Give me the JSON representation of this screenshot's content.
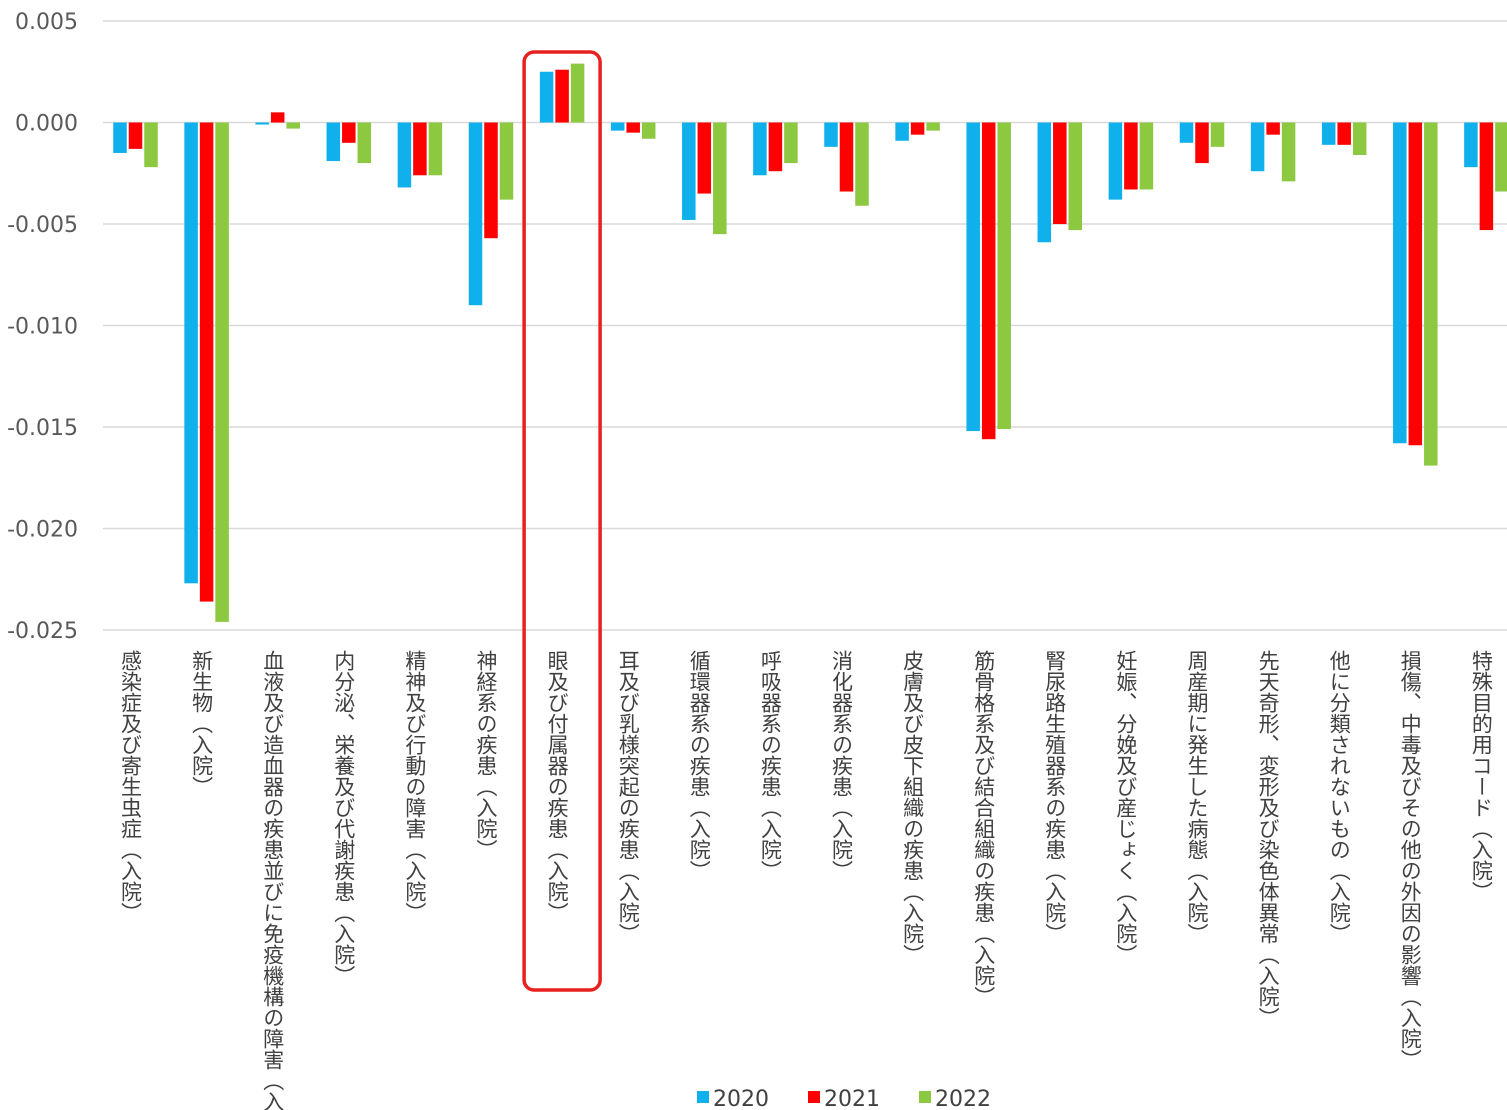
{
  "chart_data": {
    "type": "bar",
    "title": "",
    "xlabel": "",
    "ylabel": "",
    "ylim": [
      -0.025,
      0.005
    ],
    "yticks": [
      "0.005",
      "0.000",
      "-0.005",
      "-0.010",
      "-0.015",
      "-0.020",
      "-0.025"
    ],
    "ytick_values": [
      0.005,
      0.0,
      -0.005,
      -0.01,
      -0.015,
      -0.02,
      -0.025
    ],
    "grid": true,
    "legend_position": "bottom",
    "highlight_category_index": 6,
    "highlight_color": "#e8201e",
    "categories": [
      "感染症及び寄生虫症（入院）",
      "新生物（入院）",
      "血液及び造血器の疾患並びに免疫機構の障害（入",
      "内分泌、栄養及び代謝疾患（入院）",
      "精神及び行動の障害（入院）",
      "神経系の疾患（入院）",
      "眼及び付属器の疾患（入院）",
      "耳及び乳様突起の疾患（入院）",
      "循環器系の疾患（入院）",
      "呼吸器系の疾患（入院）",
      "消化器系の疾患（入院）",
      "皮膚及び皮下組織の疾患（入院）",
      "筋骨格系及び結合組織の疾患（入院）",
      "腎尿路生殖器系の疾患（入院）",
      "妊娠、分娩及び産じょく（入院）",
      "周産期に発生した病態（入院）",
      "先天奇形、変形及び染色体異常（入院）",
      "他に分類されないもの（入院）",
      "損傷、中毒及びその他の外因の影響（入院）",
      "特殊目的用コード（入院）"
    ],
    "series": [
      {
        "name": "2020",
        "color": "#0fb0ec",
        "values": [
          -0.0015,
          -0.0227,
          -0.0001,
          -0.0019,
          -0.0032,
          -0.009,
          0.0025,
          -0.0004,
          -0.0048,
          -0.0026,
          -0.0012,
          -0.0009,
          -0.0152,
          -0.0059,
          -0.0038,
          -0.001,
          -0.0024,
          -0.0011,
          -0.0158,
          -0.0022
        ]
      },
      {
        "name": "2021",
        "color": "#ff0000",
        "values": [
          -0.0013,
          -0.0236,
          0.0005,
          -0.001,
          -0.0026,
          -0.0057,
          0.0026,
          -0.0005,
          -0.0035,
          -0.0024,
          -0.0034,
          -0.0006,
          -0.0156,
          -0.005,
          -0.0033,
          -0.002,
          -0.0006,
          -0.0011,
          -0.0159,
          -0.0053
        ]
      },
      {
        "name": "2022",
        "color": "#8cc840",
        "values": [
          -0.0022,
          -0.0246,
          -0.0003,
          -0.002,
          -0.0026,
          -0.0038,
          0.0029,
          -0.0008,
          -0.0055,
          -0.002,
          -0.0041,
          -0.0004,
          -0.0151,
          -0.0053,
          -0.0033,
          -0.0012,
          -0.0029,
          -0.0016,
          -0.0169,
          -0.0034
        ]
      }
    ]
  }
}
